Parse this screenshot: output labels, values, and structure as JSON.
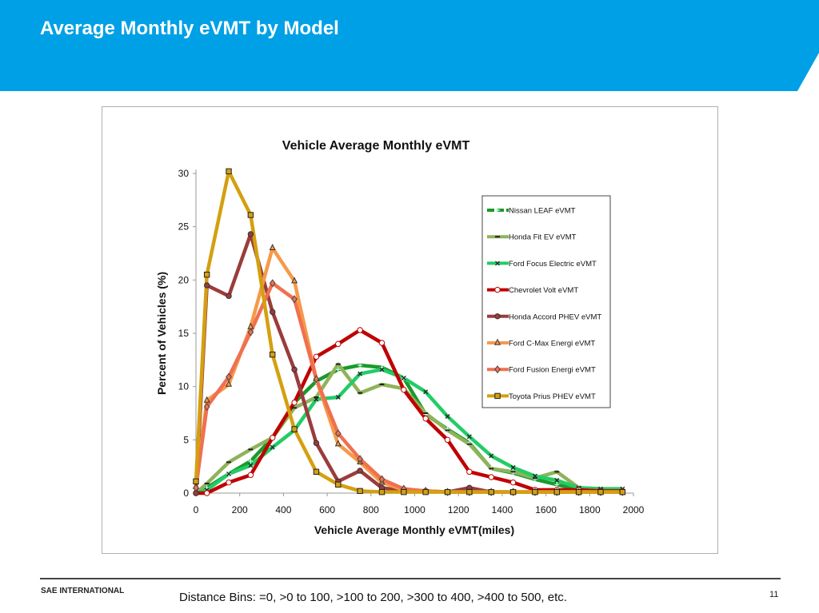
{
  "slide": {
    "title": "Average Monthly eVMT by Model",
    "banner_color": "#00a0e6",
    "org": "SAE INTERNATIONAL",
    "note": "Distance Bins: =0,  >0 to 100,  >100 to 200,  >300 to 400,  >400 to 500,  etc.",
    "page_number": "11"
  },
  "chart_data": {
    "type": "line",
    "title": "Vehicle Average Monthly eVMT",
    "xlabel": "Vehicle Average Monthly eVMT(miles)",
    "ylabel": "Percent of Vehicles (%)",
    "xlim": [
      0,
      2000
    ],
    "ylim": [
      0,
      30
    ],
    "xticks": [
      "0",
      "200",
      "400",
      "600",
      "800",
      "1000",
      "1200",
      "1400",
      "1600",
      "1800",
      "2000"
    ],
    "yticks": [
      "0",
      "5",
      "10",
      "15",
      "20",
      "25",
      "30"
    ],
    "grid": false,
    "legend_placement": "right",
    "x": [
      0,
      50,
      150,
      250,
      350,
      450,
      550,
      650,
      750,
      850,
      950,
      1050,
      1150,
      1250,
      1350,
      1450,
      1550,
      1650,
      1750,
      1850,
      1950
    ],
    "series": [
      {
        "name": "Nissan LEAF eVMT",
        "color": "#1a9a2a",
        "marker": "plus",
        "values": [
          0,
          0.5,
          1.8,
          3,
          5.2,
          8.5,
          10.5,
          11.6,
          12,
          11.8,
          10.8,
          7.4,
          6,
          4.7,
          2.3,
          1.9,
          1.3,
          0.8,
          0.3,
          0.3,
          0.3
        ]
      },
      {
        "name": "Honda Fit EV eVMT",
        "color": "#8fb35a",
        "marker": "dash",
        "values": [
          0,
          0.9,
          2.9,
          4.1,
          5.2,
          8,
          9,
          12.1,
          9.4,
          10.2,
          9.8,
          7.5,
          5.9,
          4.6,
          2.3,
          2,
          1.4,
          2,
          0.5,
          0.4,
          0.3
        ]
      },
      {
        "name": "Ford Focus Electric eVMT",
        "color": "#22cc66",
        "marker": "x",
        "values": [
          0,
          0.3,
          1.8,
          2.6,
          4.3,
          5.9,
          8.8,
          9,
          11.2,
          11.6,
          10.8,
          9.5,
          7.2,
          5.3,
          3.5,
          2.4,
          1.6,
          1.2,
          0.5,
          0.4,
          0.4
        ]
      },
      {
        "name": "Chevrolet Volt eVMT",
        "color": "#c00000",
        "marker": "circle-open",
        "values": [
          0,
          0,
          1,
          1.7,
          5.2,
          8.5,
          12.8,
          14,
          15.3,
          14.1,
          9.7,
          7,
          5,
          2,
          1.5,
          1,
          0.3,
          0.3,
          0.3,
          0.2,
          0.2
        ]
      },
      {
        "name": "Honda Accord PHEV eVMT",
        "color": "#9b3c3c",
        "marker": "circle",
        "values": [
          0,
          19.5,
          18.5,
          24.3,
          17,
          11.6,
          4.7,
          1.1,
          2.1,
          0.5,
          0.2,
          0.2,
          0.1,
          0.5,
          0.1,
          0.1,
          0.1,
          0.1,
          0.1,
          0.1,
          0.1
        ]
      },
      {
        "name": "Ford C-Max Energi eVMT",
        "color": "#f59a4a",
        "marker": "triangle",
        "values": [
          0.6,
          8.7,
          10.2,
          15.6,
          23,
          19.9,
          10.7,
          4.6,
          2.9,
          1,
          0.3,
          0.2,
          0.1,
          0.1,
          0.1,
          0.1,
          0.1,
          0.1,
          0.1,
          0.1,
          0.1
        ]
      },
      {
        "name": "Ford Fusion Energi eVMT",
        "color": "#f07050",
        "marker": "diamond",
        "values": [
          0.5,
          8.1,
          10.9,
          15.1,
          19.7,
          18.2,
          10.7,
          5.6,
          3.2,
          1.3,
          0.4,
          0.2,
          0.1,
          0.1,
          0.1,
          0.1,
          0.1,
          0.1,
          0.1,
          0.1,
          0.1
        ]
      },
      {
        "name": "Toyota Prius PHEV eVMT",
        "color": "#d4a010",
        "marker": "square",
        "values": [
          1.1,
          20.5,
          30.2,
          26.1,
          13,
          6,
          2,
          0.8,
          0.2,
          0.1,
          0.1,
          0.1,
          0.1,
          0.1,
          0.1,
          0.1,
          0.1,
          0.1,
          0.1,
          0.1,
          0.1
        ]
      }
    ]
  }
}
